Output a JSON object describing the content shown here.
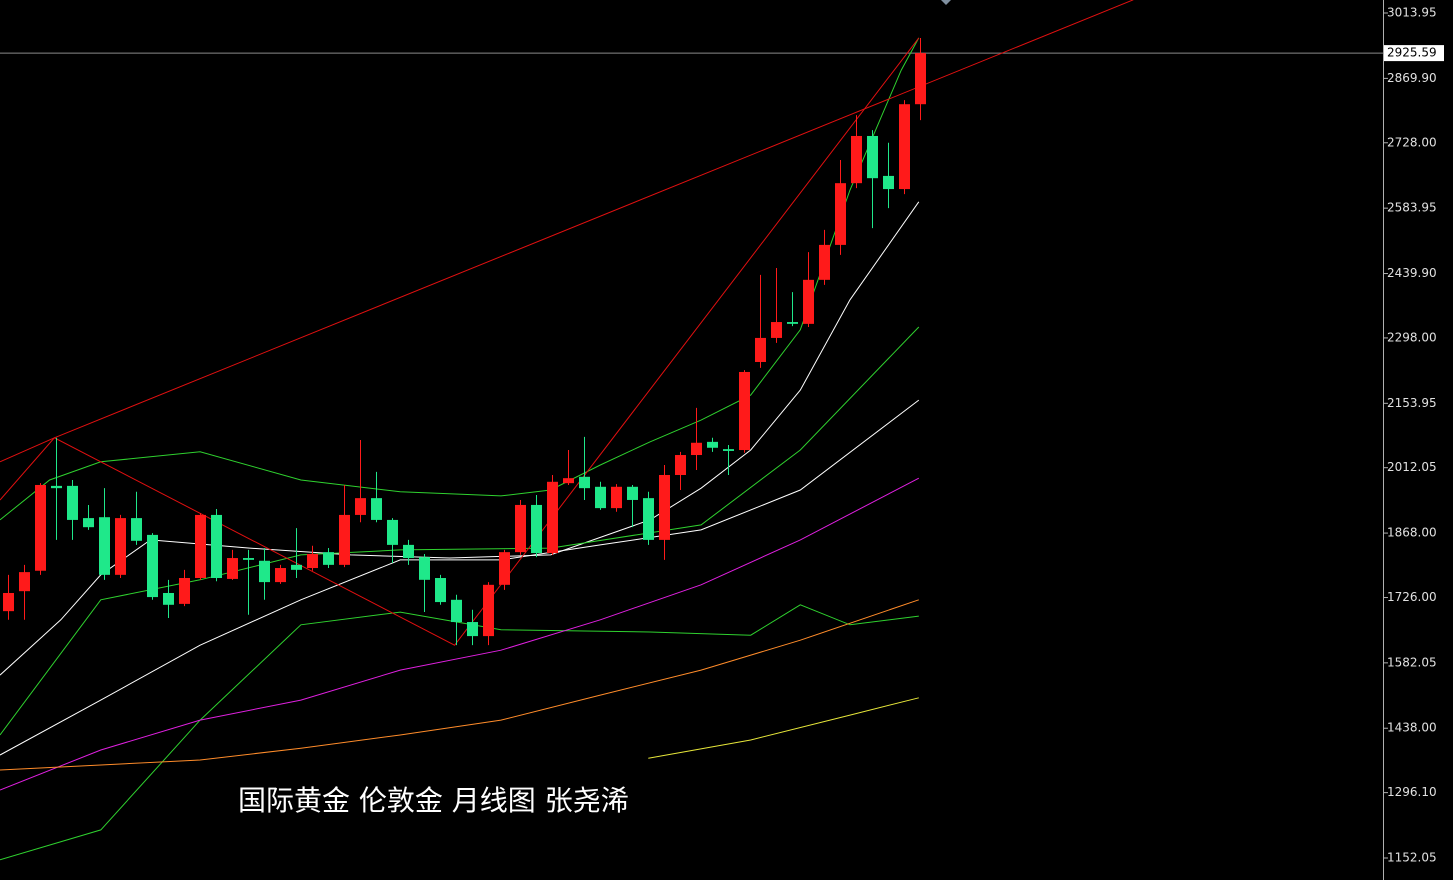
{
  "chart_data": {
    "type": "candlestick",
    "caption": "国际黄金 伦敦金 月线图 张尧浠",
    "xlim": [
      -0.5,
      85.9
    ],
    "ylim": [
      1103.6,
      3042.6
    ],
    "yticks": [
      3013.95,
      {
        "value": 2869.9,
        "label": "2869.90"
      },
      {
        "value": 2728,
        "label": "2728.00"
      },
      2583.95,
      {
        "value": 2439.9,
        "label": "2439.90"
      },
      {
        "value": 2298,
        "label": "2298.00"
      },
      2153.95,
      2012.05,
      {
        "value": 1868,
        "label": "1868.00"
      },
      {
        "value": 1726,
        "label": "1726.00"
      },
      1582.05,
      {
        "value": 1438,
        "label": "1438.00"
      },
      {
        "value": 1296.1,
        "label": "1296.10"
      },
      1152.05
    ],
    "last_price": 2925.59,
    "up_color": "#ff1a1a",
    "down_color": "#1fe88a",
    "open": [
      1696,
      1740,
      1785,
      1972,
      1972,
      1901,
      1903,
      1776,
      1901,
      1864,
      1736,
      1712,
      1769,
      1908,
      1767,
      1813,
      1807,
      1760,
      1798,
      1791,
      1826,
      1798,
      1908,
      1945,
      1897,
      1842,
      1815,
      1769,
      1721,
      1672,
      1641,
      1754,
      1826,
      1930,
      1824,
      1978,
      1992,
      1970,
      1923,
      1970,
      1945,
      1853,
      1996,
      2040,
      2069,
      2053,
      2051,
      2245,
      2298,
      2333,
      2329,
      2426,
      2503,
      2639,
      2743,
      2655,
      2626,
      2813
    ],
    "high": [
      1776,
      1798,
      1978,
      2078,
      1985,
      1930,
      1967,
      1908,
      1959,
      1868,
      1765,
      1787,
      1912,
      1921,
      1831,
      1831,
      1835,
      1798,
      1879,
      1840,
      1835,
      1974,
      2073,
      2003,
      1901,
      1853,
      1822,
      1776,
      1732,
      1699,
      1760,
      1831,
      1941,
      1952,
      1996,
      2051,
      2080,
      1981,
      1976,
      1974,
      1959,
      2018,
      2047,
      2144,
      2078,
      2062,
      2227,
      2437,
      2452,
      2399,
      2487,
      2536,
      2690,
      2789,
      2756,
      2728,
      2822,
      2959
    ],
    "low": [
      1677,
      1677,
      1776,
      1853,
      1853,
      1875,
      1765,
      1769,
      1842,
      1721,
      1681,
      1707,
      1765,
      1762,
      1765,
      1688,
      1721,
      1756,
      1769,
      1785,
      1791,
      1793,
      1892,
      1892,
      1802,
      1798,
      1694,
      1710,
      1621,
      1621,
      1621,
      1743,
      1820,
      1815,
      1820,
      1974,
      1941,
      1919,
      1915,
      1881,
      1842,
      1809,
      1963,
      2007,
      2047,
      1996,
      2045,
      2232,
      2287,
      2324,
      2322,
      2415,
      2481,
      2628,
      2540,
      2584,
      2615,
      2778
    ],
    "close": [
      1736,
      1782,
      1974,
      1967,
      1897,
      1881,
      1776,
      1901,
      1851,
      1727,
      1710,
      1769,
      1908,
      1769,
      1813,
      1809,
      1760,
      1791,
      1787,
      1822,
      1798,
      1908,
      1945,
      1897,
      1842,
      1813,
      1765,
      1716,
      1672,
      1641,
      1754,
      1826,
      1930,
      1824,
      1981,
      1989,
      1967,
      1923,
      1970,
      1941,
      1853,
      1996,
      2040,
      2067,
      2056,
      2049,
      2223,
      2298,
      2333,
      2329,
      2426,
      2503,
      2639,
      2743,
      2650,
      2626,
      2813,
      2925.59
    ],
    "overlays": [
      {
        "color": "#ffffff",
        "x": [
          -0.5,
          3.3,
          5.8,
          8.9,
          15.1,
          21.4,
          27.6,
          33.9,
          40.1,
          43.3,
          46.4,
          49.5,
          52.6,
          56.9
        ],
        "values": [
          1555,
          1677,
          1776,
          1853,
          1835,
          1820,
          1813,
          1820,
          1897,
          1967,
          2051,
          2183,
          2382,
          2598
        ]
      },
      {
        "color": "#ffffff",
        "x": [
          -0.5,
          5.8,
          12,
          18.3,
          24.5,
          30.8,
          37,
          43.3,
          49.5,
          56.9
        ],
        "values": [
          1379,
          1500,
          1621,
          1721,
          1809,
          1809,
          1842,
          1875,
          1963,
          2161
        ]
      },
      {
        "color": "#2fd12f",
        "x": [
          -0.5,
          5.8,
          12,
          18.3,
          24.5,
          33.9,
          43.3,
          49.5,
          56.9
        ],
        "values": [
          1423,
          1721,
          1765,
          1820,
          1831,
          1835,
          1886,
          2051,
          2322
        ]
      },
      {
        "color": "#2fd12f",
        "x": [
          -0.5,
          5.8,
          12,
          18.3,
          24.5,
          30.8,
          40.1,
          46.4,
          49.5,
          52.6,
          56.9
        ],
        "values": [
          1148,
          1214,
          1456,
          1666,
          1694,
          1655,
          1650,
          1643,
          1710,
          1666,
          1685
        ]
      },
      {
        "color": "#2fd12f",
        "x": [
          -0.5,
          2.6,
          5.8,
          12,
          18.3,
          24.5,
          30.8,
          33.9,
          37,
          40.1,
          43.3,
          46.4,
          49.5,
          52.6,
          55.8,
          56.9
        ],
        "values": [
          1897,
          1985,
          2025,
          2047,
          1985,
          1959,
          1950,
          1963,
          2018,
          2069,
          2117,
          2172,
          2316,
          2624,
          2888,
          2959
        ]
      },
      {
        "color": "#e020e0",
        "x": [
          -0.5,
          5.8,
          12,
          18.3,
          24.5,
          30.8,
          37,
          43.3,
          49.5,
          56.9
        ],
        "values": [
          1302,
          1390,
          1456,
          1500,
          1566,
          1610,
          1677,
          1754,
          1853,
          1989
        ]
      },
      {
        "color": "#ff8c2a",
        "x": [
          -0.5,
          5.8,
          12,
          18.3,
          24.5,
          30.8,
          37,
          43.3,
          49.5,
          56.9
        ],
        "values": [
          1346,
          1357,
          1368,
          1394,
          1423,
          1456,
          1511,
          1566,
          1632,
          1721
        ]
      },
      {
        "color": "#e8e83a",
        "x": [
          40,
          46.4,
          52.6,
          56.9
        ],
        "values": [
          1372,
          1412,
          1467,
          1505
        ]
      },
      {
        "color": "#e01010",
        "x": [
          -0.5,
          2.9,
          70.3
        ],
        "values": [
          2025,
          2078,
          3043
        ]
      },
      {
        "color": "#e01010",
        "x": [
          -0.5,
          2.9,
          27.9,
          56.9
        ],
        "values": [
          1941,
          2078,
          1621,
          2959
        ]
      }
    ]
  }
}
